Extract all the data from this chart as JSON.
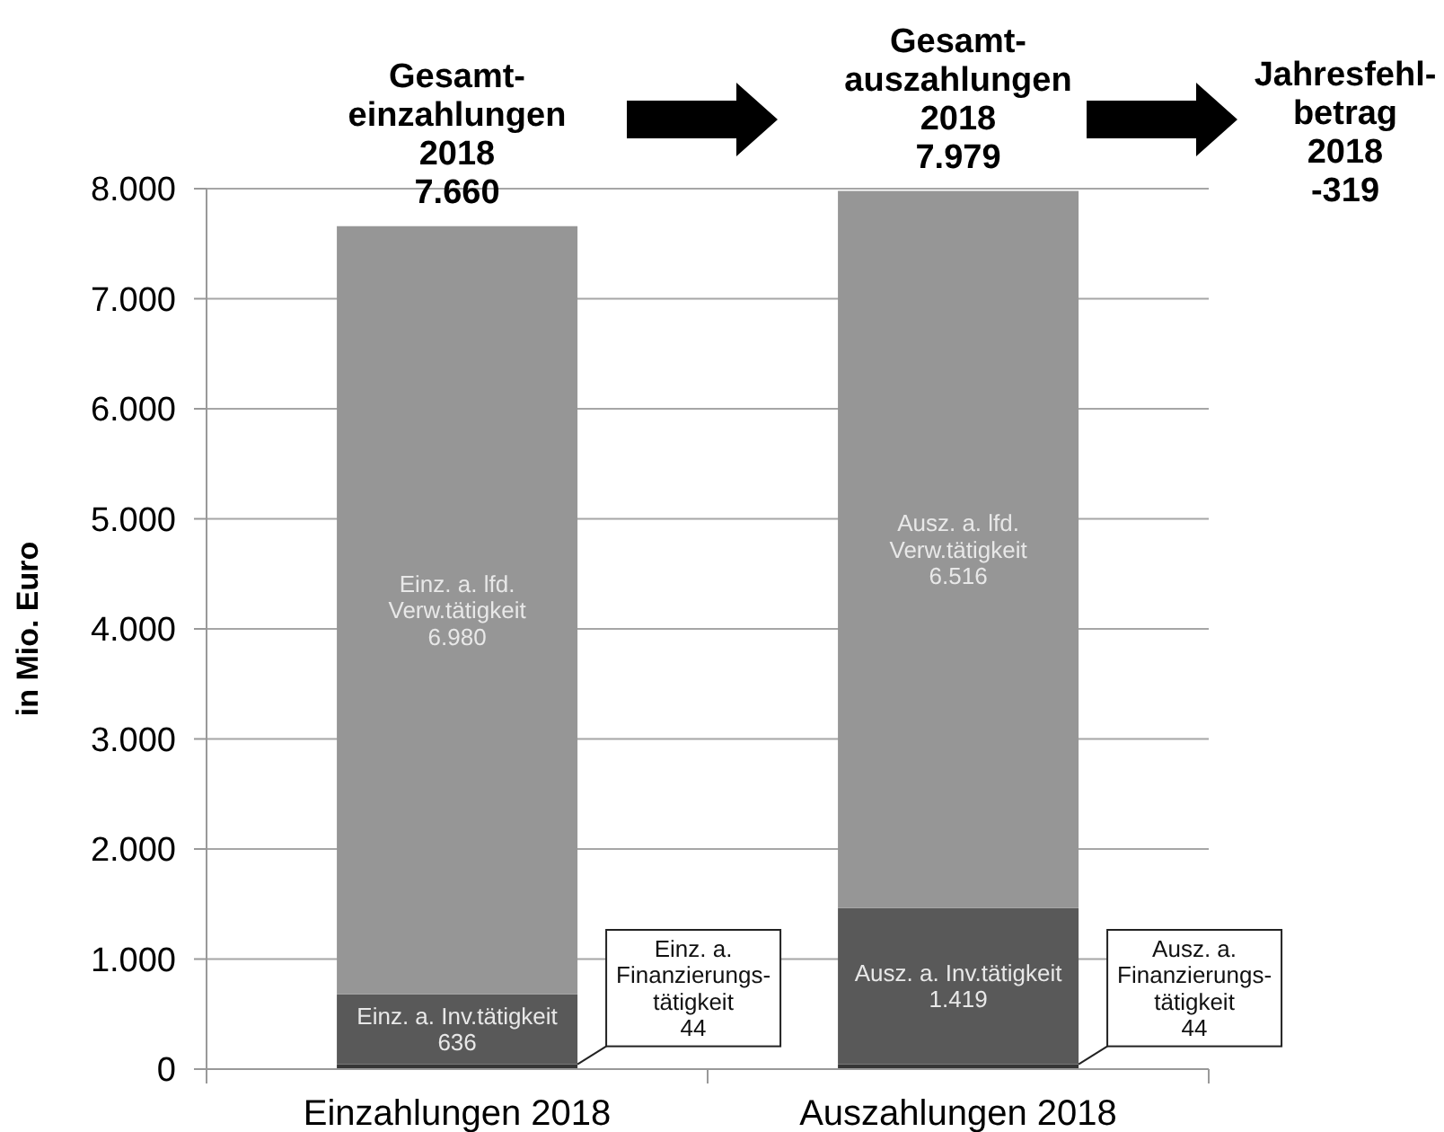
{
  "chart_data": {
    "type": "bar",
    "stacked": true,
    "ylabel": "in Mio. Euro",
    "categories": [
      "Einzahlungen 2018",
      "Auszahlungen 2018"
    ],
    "series": [
      {
        "color": "#363636",
        "values": [
          44,
          44
        ],
        "value_labels": [
          "Einz. a.\nFinanzierungs-\ntätigkeit\n44",
          "Ausz. a.\nFinanzierungs-\ntätigkeit\n44"
        ]
      },
      {
        "color": "#595959",
        "values": [
          636,
          1419
        ],
        "value_labels": [
          "Einz. a. Inv.tätigkeit\n636",
          "Ausz. a. Inv.tätigkeit\n1.419"
        ]
      },
      {
        "color": "#969696",
        "values": [
          6980,
          6516
        ],
        "value_labels": [
          "Einz. a. lfd.\nVerw.tätigkeit\n6.980",
          "Ausz. a. lfd.\nVerw.tätigkeit\n6.516"
        ]
      }
    ],
    "ylim": [
      0,
      8000
    ],
    "yticks": [
      0,
      {
        "value": 1000,
        "label": "1.000"
      },
      {
        "value": 2000,
        "label": "2.000"
      },
      {
        "value": 3000,
        "label": "3.000"
      },
      {
        "value": 4000,
        "label": "4.000"
      },
      {
        "value": 5000,
        "label": "5.000"
      },
      {
        "value": 6000,
        "label": "6.000"
      },
      {
        "value": 7000,
        "label": "7.000"
      },
      {
        "value": 8000,
        "label": "8.000"
      }
    ],
    "grid": "y",
    "annotations": [
      {
        "text": "Gesamt-\neinzahlungen\n2018\n7.660",
        "x": "Einzahlungen 2018",
        "y": 7660
      },
      {
        "text": "Gesamt-\nauszahlungen\n2018\n7.979",
        "x": "Auszahlungen 2018",
        "y": 7979
      },
      "Jahresfehl-\nbetrag\n2018\n-319"
    ]
  }
}
